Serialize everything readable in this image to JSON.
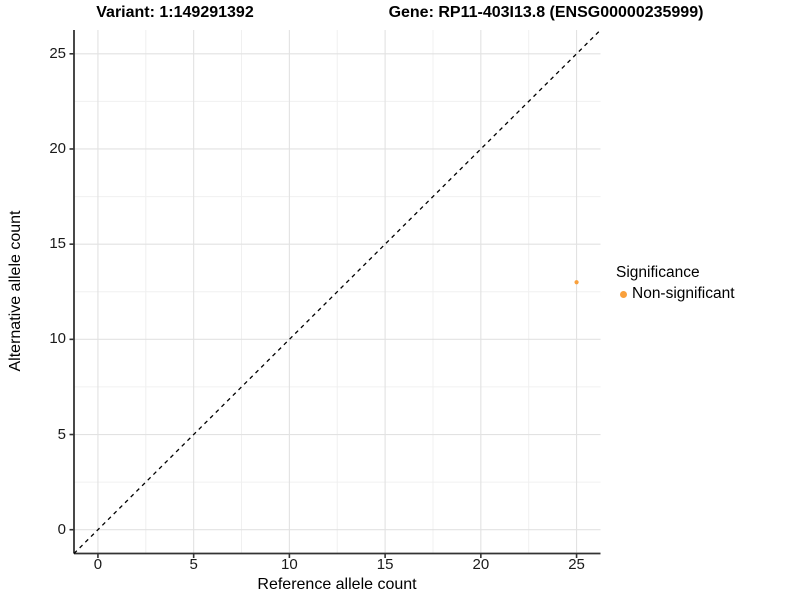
{
  "header": {
    "variant_title": "Variant: 1:149291392",
    "gene_title": "Gene: RP11-403I13.8 (ENSG00000235999)"
  },
  "chart_data": {
    "type": "scatter",
    "xlabel": "Reference allele count",
    "ylabel": "Alternative allele count",
    "x_ticks": [
      0,
      5,
      10,
      15,
      20,
      25
    ],
    "y_ticks": [
      0,
      5,
      10,
      15,
      20,
      25
    ],
    "xlim": [
      -1.25,
      26.25
    ],
    "ylim": [
      -1.25,
      26.25
    ],
    "grid": "major+minor",
    "grid_major_color": "#E2E2E2",
    "grid_minor_color": "#F0F0F0",
    "axis_line_color": "#333333",
    "identity_line": {
      "style": "dashed",
      "color": "#000000",
      "from": -1.25,
      "to": 26.25
    },
    "series": [
      {
        "name": "Non-significant",
        "color": "#F9A03C",
        "points": [
          {
            "x": 25,
            "y": 13
          }
        ]
      }
    ],
    "legend": {
      "title": "Significance",
      "position": "right"
    }
  }
}
